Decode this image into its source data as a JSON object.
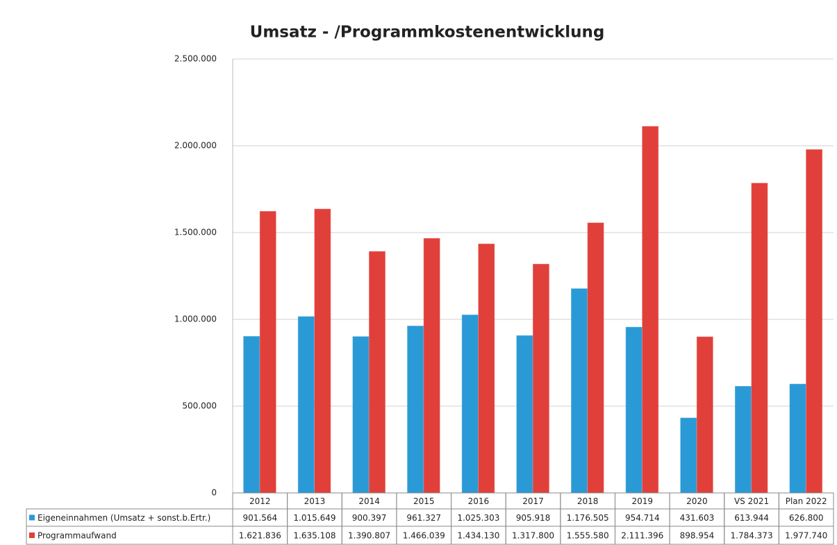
{
  "chart_data": {
    "type": "bar",
    "title": "Umsatz - /Programmkostenentwicklung",
    "categories": [
      "2012",
      "2013",
      "2014",
      "2015",
      "2016",
      "2017",
      "2018",
      "2019",
      "2020",
      "VS 2021",
      "Plan 2022"
    ],
    "series": [
      {
        "name": "Eigeneinnahmen (Umsatz + sonst.b.Ertr.)",
        "color": "#2a9ad6",
        "values": [
          901564,
          1015649,
          900397,
          961327,
          1025303,
          905918,
          1176505,
          954714,
          431603,
          613944,
          626800
        ],
        "value_labels": [
          "901.564",
          "1.015.649",
          "900.397",
          "961.327",
          "1.025.303",
          "905.918",
          "1.176.505",
          "954.714",
          "431.603",
          "613.944",
          "626.800"
        ]
      },
      {
        "name": "Programmaufwand",
        "color": "#e1403a",
        "values": [
          1621836,
          1635108,
          1390807,
          1466039,
          1434130,
          1317800,
          1555580,
          2111396,
          898954,
          1784373,
          1977740
        ],
        "value_labels": [
          "1.621.836",
          "1.635.108",
          "1.390.807",
          "1.466.039",
          "1.434.130",
          "1.317.800",
          "1.555.580",
          "2.111.396",
          "898.954",
          "1.784.373",
          "1.977.740"
        ]
      }
    ],
    "ylim": [
      0,
      2500000
    ],
    "yticks": [
      0,
      {
        "value": 500000,
        "label": "500.000"
      },
      {
        "value": 1000000,
        "label": "1.000.000"
      },
      {
        "value": 1500000,
        "label": "1.500.000"
      },
      {
        "value": 2000000,
        "label": "2.000.000"
      },
      {
        "value": 2500000,
        "label": "2.500.000"
      }
    ],
    "grid": true
  }
}
